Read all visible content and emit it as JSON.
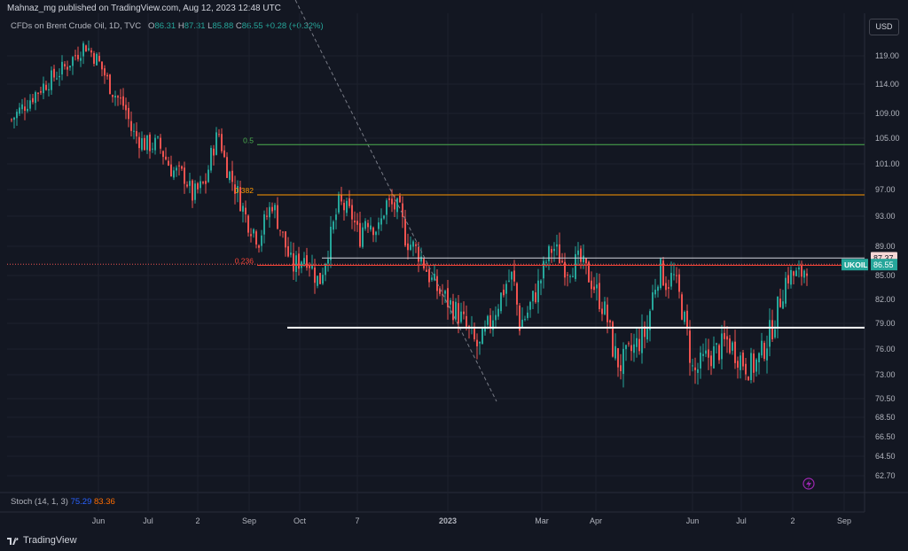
{
  "header": {
    "publish_line": "Mahnaz_mg published on TradingView.com, Aug 12, 2023 12:48 UTC",
    "symbol": "CFDs on Brent Crude Oil, 1D, TVC",
    "ohlc": {
      "o_label": "O",
      "o": "86.31",
      "h_label": "H",
      "h": "87.31",
      "l_label": "L",
      "l": "85.88",
      "c_label": "C",
      "c": "86.55",
      "change": "+0.28 (+0.32%)"
    }
  },
  "currency_button": "USD",
  "indicator": {
    "name": "Stoch (14, 1, 3)",
    "k": "75.29",
    "d": "83.36"
  },
  "brand": "TradingView",
  "colors": {
    "background": "#131722",
    "up": "#26a69a",
    "down": "#ef5350",
    "grid": "#1e222d",
    "fib_05": "#4caf50",
    "fib_0382": "#ff9800",
    "fib_0236": "#f44336",
    "support": "#ffffff",
    "price_badge": "#26a69a"
  },
  "chart_data": {
    "type": "candlestick",
    "y_axis": {
      "ticks": [
        119.0,
        114.0,
        109.0,
        105.0,
        101.0,
        97.0,
        93.0,
        89.0,
        85.0,
        82.0,
        79.0,
        76.0,
        73.0,
        70.5,
        68.5,
        66.5,
        64.5,
        62.7
      ],
      "scale": "log"
    },
    "x_axis": {
      "ticks": [
        "Jun",
        "Jul",
        "2",
        "Sep",
        "Oct",
        "7",
        "2023",
        "Mar",
        "Apr",
        "Jun",
        "Jul",
        "2",
        "Sep"
      ]
    },
    "fib_levels": [
      {
        "label": "0.5",
        "price": 104.0
      },
      {
        "label": "0.382",
        "price": 96.2
      },
      {
        "label": "0.236",
        "price": 86.4
      }
    ],
    "support_line": {
      "price": 78.5
    },
    "resistance_line": {
      "price": 87.4
    },
    "trendline": {
      "from_price": 123.5,
      "to_price": 70.2
    },
    "current_price": {
      "label": "UKOIL",
      "value": "86.55"
    },
    "marker_price": {
      "value": "87.37"
    },
    "price_path": [
      [
        0,
        108
      ],
      [
        4,
        113
      ],
      [
        8,
        117
      ],
      [
        11,
        121
      ],
      [
        13,
        118
      ],
      [
        15,
        113
      ],
      [
        17,
        110
      ],
      [
        18,
        106
      ],
      [
        20,
        104
      ],
      [
        22,
        104
      ],
      [
        24,
        100
      ],
      [
        26,
        99
      ],
      [
        27,
        96
      ],
      [
        29,
        98
      ],
      [
        30,
        103
      ],
      [
        31,
        106
      ],
      [
        32,
        101
      ],
      [
        34,
        96
      ],
      [
        35,
        93
      ],
      [
        37,
        90
      ],
      [
        39,
        95
      ],
      [
        40,
        92
      ],
      [
        42,
        86
      ],
      [
        44,
        88
      ],
      [
        46,
        84
      ],
      [
        48,
        91
      ],
      [
        49,
        95
      ],
      [
        51,
        93
      ],
      [
        52,
        90
      ],
      [
        53,
        93
      ],
      [
        55,
        91
      ],
      [
        56,
        95
      ],
      [
        58,
        94
      ],
      [
        59,
        90
      ],
      [
        61,
        88
      ],
      [
        63,
        84
      ],
      [
        65,
        82
      ],
      [
        67,
        80
      ],
      [
        69,
        77
      ],
      [
        70,
        76
      ],
      [
        72,
        80
      ],
      [
        74,
        84
      ],
      [
        75,
        85
      ],
      [
        76,
        79
      ],
      [
        77,
        80
      ],
      [
        79,
        84
      ],
      [
        80,
        87
      ],
      [
        81,
        89
      ],
      [
        83,
        86
      ],
      [
        85,
        87
      ],
      [
        87,
        84
      ],
      [
        89,
        80
      ],
      [
        90,
        76
      ],
      [
        91,
        74
      ],
      [
        92,
        75
      ],
      [
        94,
        77
      ],
      [
        95,
        78
      ],
      [
        96,
        83
      ],
      [
        97,
        86
      ],
      [
        98,
        84
      ],
      [
        99,
        85
      ],
      [
        100,
        82
      ],
      [
        101,
        78
      ],
      [
        102,
        73
      ],
      [
        104,
        75
      ],
      [
        106,
        76
      ],
      [
        107,
        77
      ],
      [
        108,
        76
      ],
      [
        110,
        74
      ],
      [
        111,
        74
      ],
      [
        112,
        75
      ],
      [
        114,
        79
      ],
      [
        115,
        82
      ],
      [
        116,
        85
      ],
      [
        118,
        85
      ],
      [
        119,
        86.5
      ]
    ]
  }
}
